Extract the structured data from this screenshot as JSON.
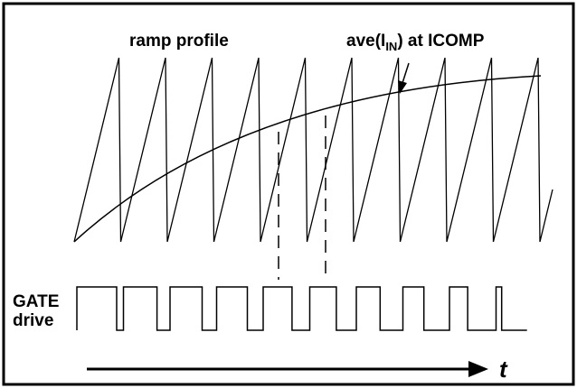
{
  "labels": {
    "ramp": "ramp profile",
    "ave_prefix": "ave(I",
    "ave_sub": "IN",
    "ave_suffix": ") at ICOMP",
    "gate_line1": "GATE",
    "gate_line2": "drive",
    "time": "t"
  },
  "colors": {
    "stroke": "#000000",
    "background": "#ffffff"
  },
  "ramp_period_count": 10,
  "gate_duty_sequence": [
    0.74,
    0.72,
    0.69,
    0.66,
    0.62,
    0.57,
    0.51,
    0.45,
    0.39,
    0.12
  ]
}
